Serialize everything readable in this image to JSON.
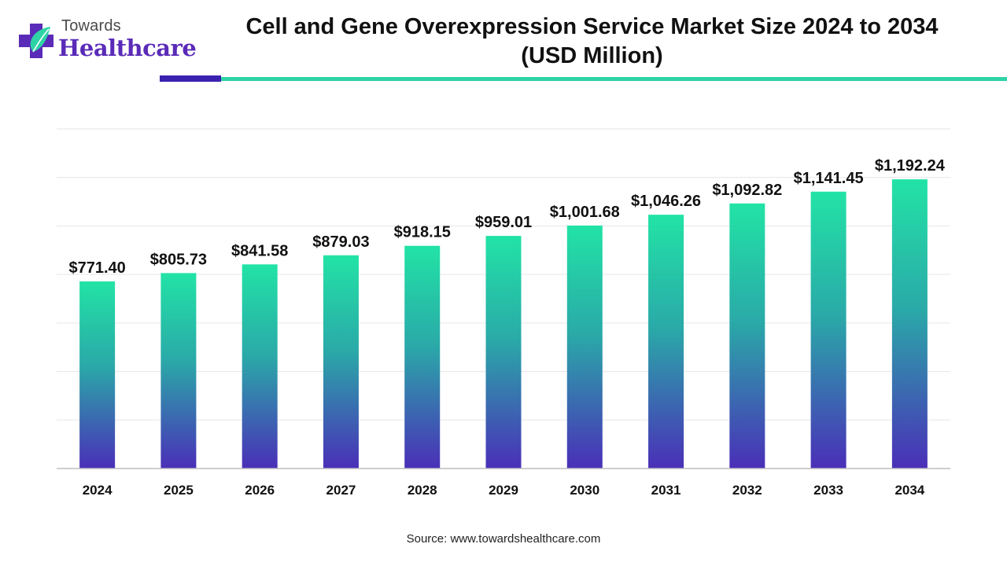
{
  "brand": {
    "line1": "Towards",
    "line2": "Healthcare",
    "accent_color": "#3b21b0",
    "teal_color": "#2ed3a6"
  },
  "header": {
    "title_line1": "Cell and Gene Overexpression Service Market Size 2024 to 2034",
    "title_line2": "(USD Million)"
  },
  "footer": {
    "source": "Source: www.towardshealthcare.com"
  },
  "chart_data": {
    "type": "bar",
    "title": "Cell and Gene Overexpression Service Market Size 2024 to 2034 (USD Million)",
    "xlabel": "",
    "ylabel": "",
    "ylim": [
      0,
      1400
    ],
    "grid": true,
    "legend": "none",
    "categories": [
      "2024",
      "2025",
      "2026",
      "2027",
      "2028",
      "2029",
      "2030",
      "2031",
      "2032",
      "2033",
      "2034"
    ],
    "values": [
      771.4,
      805.73,
      841.58,
      879.03,
      918.15,
      959.01,
      1001.68,
      1046.26,
      1092.82,
      1141.45,
      1192.24
    ],
    "labels": [
      "$771.40",
      "$805.73",
      "$841.58",
      "$879.03",
      "$918.15",
      "$959.01",
      "$1,001.68",
      "$1,046.26",
      "$1,092.82",
      "$1,141.45",
      "$1,192.24"
    ],
    "colors": {
      "bar_top": "#22e3a6",
      "bar_bottom": "#4a2fb8",
      "grid": "#e6e6e6",
      "axis": "#bdbdbd"
    }
  }
}
